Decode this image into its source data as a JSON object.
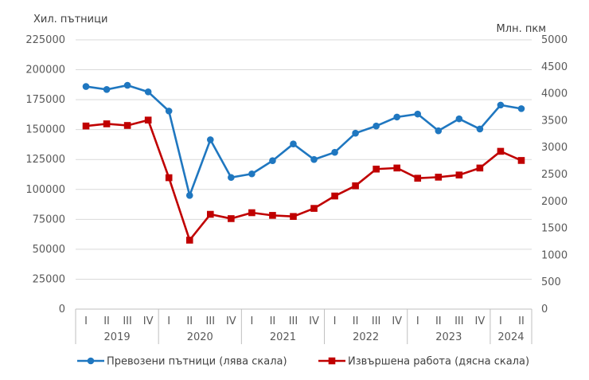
{
  "chart_data": {
    "type": "line",
    "left_axis_title": "Хил. пътници",
    "right_axis_title": "Млн. пкм",
    "left_ylim": [
      0,
      225000
    ],
    "left_ticks": [
      "0",
      "25000",
      "50000",
      "75000",
      "100000",
      "125000",
      "150000",
      "175000",
      "200000",
      "225000"
    ],
    "right_ylim": [
      0,
      5000
    ],
    "right_ticks": [
      "0",
      "500",
      "1000",
      "1500",
      "2000",
      "2500",
      "3000",
      "3500",
      "4000",
      "4500",
      "5000"
    ],
    "quarters": [
      "I",
      "II",
      "III",
      "IV",
      "I",
      "II",
      "III",
      "IV",
      "I",
      "II",
      "III",
      "IV",
      "I",
      "II",
      "III",
      "IV",
      "I",
      "II",
      "III",
      "IV",
      "I",
      "II"
    ],
    "years": [
      {
        "label": "2019",
        "count": 4
      },
      {
        "label": "2020",
        "count": 4
      },
      {
        "label": "2021",
        "count": 4
      },
      {
        "label": "2022",
        "count": 4
      },
      {
        "label": "2023",
        "count": 4
      },
      {
        "label": "2024",
        "count": 2
      }
    ],
    "series": [
      {
        "name": "Превозени пътници (лява скала)",
        "axis": "left",
        "color": "#1f77c0",
        "marker": "circle",
        "values": [
          186000,
          183500,
          187000,
          181500,
          165500,
          95000,
          141500,
          110000,
          113000,
          124000,
          138000,
          125000,
          131000,
          147000,
          153000,
          160500,
          163000,
          149000,
          159000,
          150500,
          170500,
          167500
        ]
      },
      {
        "name": "Извършена работа (дясна скала)",
        "axis": "right",
        "color": "#c00000",
        "marker": "square",
        "values": [
          3400,
          3440,
          3410,
          3510,
          2440,
          1280,
          1760,
          1680,
          1790,
          1740,
          1720,
          1870,
          2100,
          2290,
          2600,
          2620,
          2430,
          2450,
          2490,
          2620,
          2930,
          2760
        ]
      }
    ]
  }
}
